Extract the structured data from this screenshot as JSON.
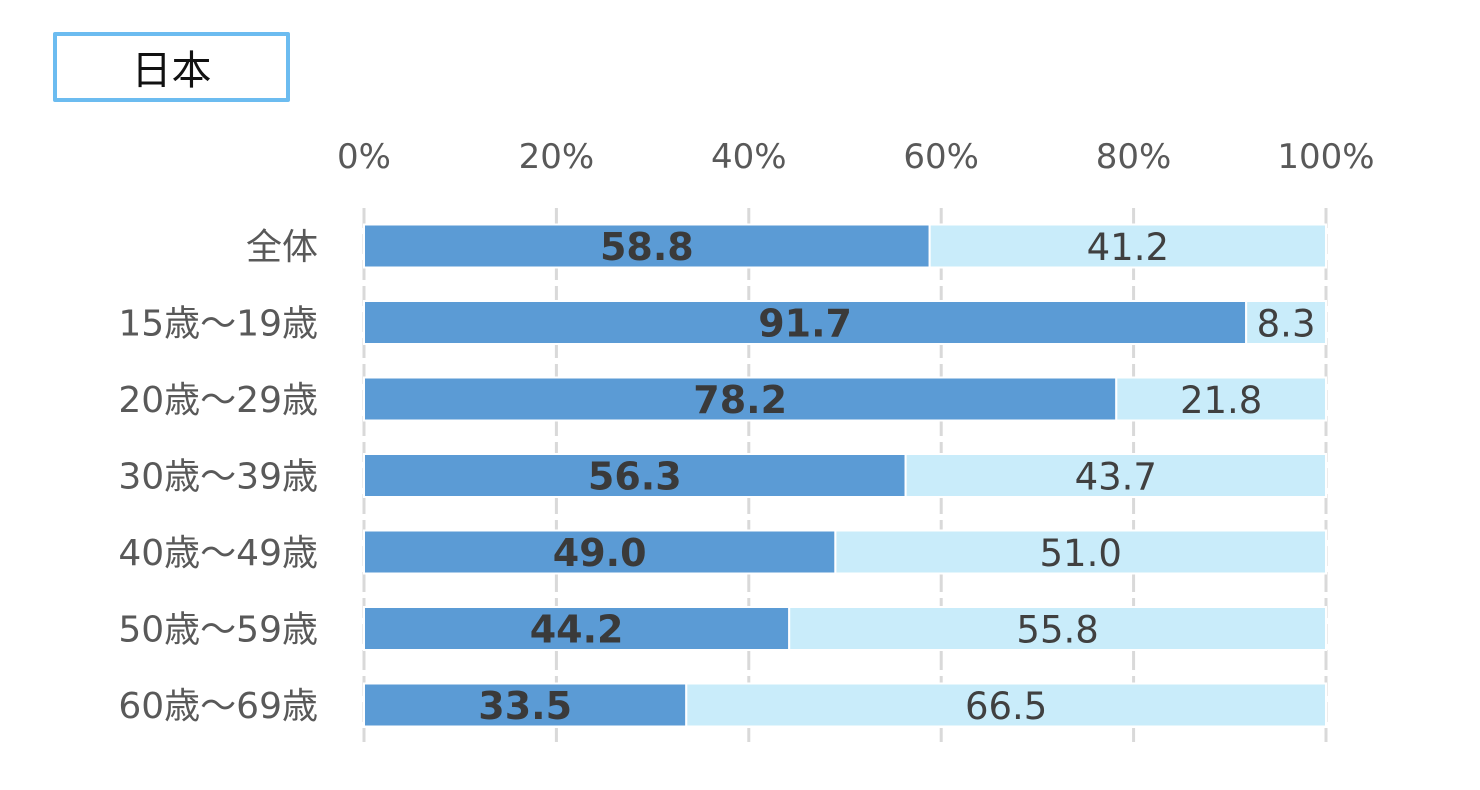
{
  "title": "日本",
  "chart_data": {
    "type": "bar",
    "orientation": "horizontal",
    "stacked": true,
    "title": "日本",
    "categories": [
      "全体",
      "15歳～19歳",
      "20歳～29歳",
      "30歳～39歳",
      "40歳～49歳",
      "50歳～59歳",
      "60歳～69歳"
    ],
    "series": [
      {
        "values": [
          58.8,
          91.7,
          78.2,
          56.3,
          49.0,
          44.2,
          33.5
        ],
        "labels": [
          "58.8",
          "91.7",
          "78.2",
          "56.3",
          "49.0",
          "44.2",
          "33.5"
        ],
        "color": "#5b9bd5"
      },
      {
        "values": [
          41.2,
          8.3,
          21.8,
          43.7,
          51.0,
          55.8,
          66.5
        ],
        "labels": [
          "41.2",
          "8.3",
          "21.8",
          "43.7",
          "51.0",
          "55.8",
          "66.5"
        ],
        "color": "#c9ecfa"
      }
    ],
    "xlim": [
      0,
      100
    ],
    "xticks": [
      "0%",
      "20%",
      "40%",
      "60%",
      "80%",
      "100%"
    ],
    "xtick_values": [
      0,
      20,
      40,
      60,
      80,
      100
    ],
    "axis_position": "top",
    "grid": true,
    "grid_style": "dashed",
    "legend": "none"
  }
}
